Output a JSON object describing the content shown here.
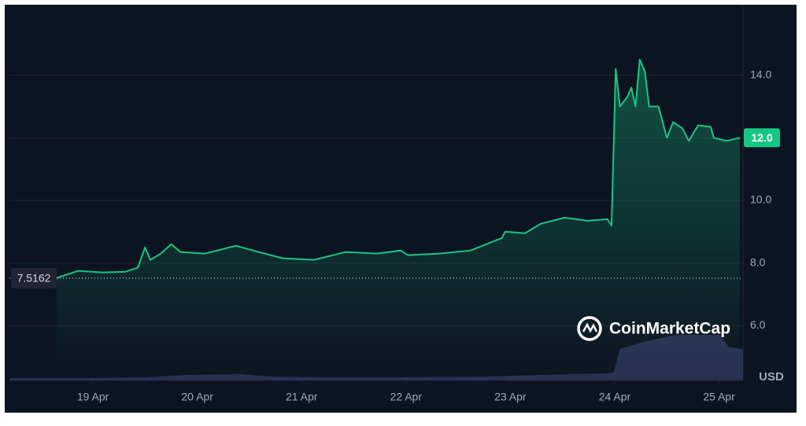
{
  "chart_data": {
    "type": "line",
    "brand": "CoinMarketCap",
    "unit": "USD",
    "x": [
      18.65,
      18.86,
      19.09,
      19.31,
      19.43,
      19.5,
      19.55,
      19.65,
      19.75,
      19.84,
      20.07,
      20.37,
      20.59,
      20.82,
      21.12,
      21.42,
      21.72,
      21.95,
      22.02,
      22.32,
      22.62,
      22.77,
      22.92,
      22.95,
      23.14,
      23.29,
      23.52,
      23.74,
      23.93,
      23.97,
      24.01,
      24.05,
      24.12,
      24.16,
      24.2,
      24.24,
      24.29,
      24.33,
      24.42,
      24.5,
      24.56,
      24.65,
      24.71,
      24.8,
      24.92,
      24.95,
      25.07,
      25.2
    ],
    "series": [
      {
        "color": "#16c784",
        "values": [
          7.52,
          7.75,
          7.7,
          7.72,
          7.85,
          8.5,
          8.1,
          8.3,
          8.6,
          8.35,
          8.3,
          8.55,
          8.35,
          8.15,
          8.1,
          8.35,
          8.3,
          8.4,
          8.25,
          8.3,
          8.4,
          8.6,
          8.8,
          9.0,
          8.95,
          9.25,
          9.45,
          9.35,
          9.4,
          9.2,
          14.2,
          13.0,
          13.3,
          13.6,
          13.0,
          14.5,
          14.1,
          13.0,
          13.0,
          12.0,
          12.5,
          12.3,
          11.9,
          12.4,
          12.35,
          12.0,
          11.9,
          12.0
        ]
      }
    ],
    "volume": {
      "color": "#2b3358",
      "ylim": [
        0,
        100
      ],
      "x": [
        18.2,
        19.0,
        19.5,
        19.9,
        20.4,
        20.7,
        21.2,
        22.0,
        22.8,
        23.3,
        23.9,
        23.99,
        24.05,
        24.3,
        24.6,
        25.0,
        25.1,
        25.23
      ],
      "values": [
        3,
        3,
        4,
        7,
        8,
        5,
        4,
        4,
        5,
        7,
        9,
        10,
        40,
        50,
        58,
        58,
        42,
        40
      ]
    },
    "xlim": [
      18.2,
      25.23
    ],
    "ylim": [
      4.25,
      16.25
    ],
    "xticks": [
      {
        "value": 19,
        "label": "19 Apr"
      },
      {
        "value": 20,
        "label": "20 Apr"
      },
      {
        "value": 21,
        "label": "21 Apr"
      },
      {
        "value": 22,
        "label": "22 Apr"
      },
      {
        "value": 23,
        "label": "23 Apr"
      },
      {
        "value": 24,
        "label": "24 Apr"
      },
      {
        "value": 25,
        "label": "25 Apr"
      }
    ],
    "yticks": [
      {
        "value": 6,
        "label": "6.0"
      },
      {
        "value": 8,
        "label": "8.0"
      },
      {
        "value": 10,
        "label": "10.0"
      },
      {
        "value": 12,
        "label": "12.0"
      },
      {
        "value": 14,
        "label": "14.0"
      }
    ],
    "grid": true,
    "open_price": 7.5162,
    "current_price": {
      "value": 12.0,
      "label": "12.0"
    }
  }
}
